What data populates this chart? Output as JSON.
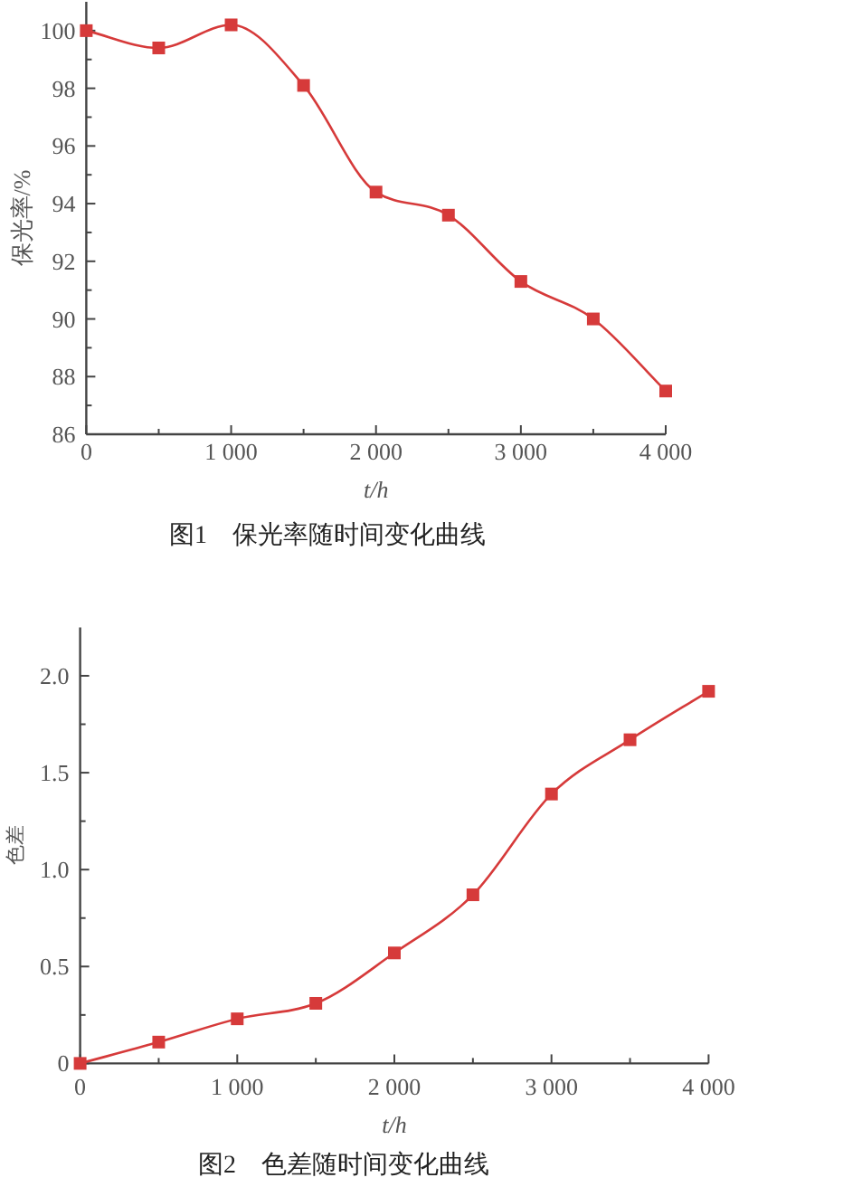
{
  "chart_data": [
    {
      "type": "line",
      "title": "图1　保光率随时间变化曲线",
      "xlabel": "t/h",
      "ylabel": "保光率/%",
      "x": [
        0,
        500,
        1000,
        1500,
        2000,
        2500,
        3000,
        3500,
        4000
      ],
      "series": [
        {
          "color": "#d63a3a",
          "values": [
            100,
            99.4,
            100.2,
            98.1,
            94.4,
            93.6,
            91.3,
            90.0,
            87.5
          ]
        }
      ],
      "marker": "square",
      "xlim": [
        0,
        4000
      ],
      "ylim": [
        86,
        101
      ],
      "xticks": [
        0,
        {
          "value": 500,
          "label": null
        },
        {
          "value": 1000,
          "label": "1 000"
        },
        {
          "value": 1500,
          "label": null
        },
        {
          "value": 2000,
          "label": "2 000"
        },
        {
          "value": 2500,
          "label": null
        },
        {
          "value": 3000,
          "label": "3 000"
        },
        {
          "value": 3500,
          "label": null
        },
        {
          "value": 4000,
          "label": "4 000"
        }
      ],
      "yticks": [
        86,
        {
          "value": 87,
          "label": null
        },
        88,
        {
          "value": 89,
          "label": null
        },
        90,
        {
          "value": 91,
          "label": null
        },
        92,
        {
          "value": 93,
          "label": null
        },
        94,
        {
          "value": 95,
          "label": null
        },
        96,
        {
          "value": 97,
          "label": null
        },
        98,
        {
          "value": 99,
          "label": null
        },
        100
      ]
    },
    {
      "type": "line",
      "title": "图2　色差随时间变化曲线",
      "xlabel": "t/h",
      "ylabel": "色差",
      "x": [
        0,
        500,
        1000,
        1500,
        2000,
        2500,
        3000,
        3500,
        4000
      ],
      "series": [
        {
          "color": "#d63a3a",
          "values": [
            0,
            0.11,
            0.23,
            0.31,
            0.57,
            0.87,
            1.39,
            1.67,
            1.92
          ]
        }
      ],
      "marker": "square",
      "xlim": [
        0,
        4000
      ],
      "ylim": [
        0,
        2.25
      ],
      "xticks": [
        0,
        {
          "value": 500,
          "label": null
        },
        {
          "value": 1000,
          "label": "1 000"
        },
        {
          "value": 1500,
          "label": null
        },
        {
          "value": 2000,
          "label": "2 000"
        },
        {
          "value": 2500,
          "label": null
        },
        {
          "value": 3000,
          "label": "3 000"
        },
        {
          "value": 3500,
          "label": null
        },
        {
          "value": 4000,
          "label": "4 000"
        }
      ],
      "yticks": [
        0,
        {
          "value": 0.25,
          "label": null
        },
        {
          "value": 0.5,
          "label": "0.5"
        },
        {
          "value": 0.75,
          "label": null
        },
        {
          "value": 1,
          "label": "1.0"
        },
        {
          "value": 1.25,
          "label": null
        },
        {
          "value": 1.5,
          "label": "1.5"
        },
        {
          "value": 1.75,
          "label": null
        },
        {
          "value": 2,
          "label": "2.0"
        }
      ]
    }
  ]
}
